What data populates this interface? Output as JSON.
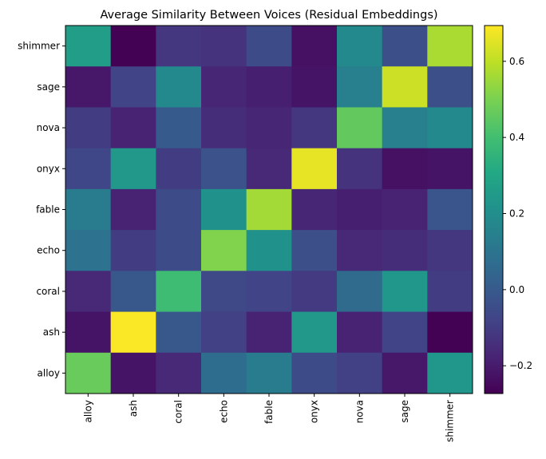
{
  "chart_data": {
    "type": "heatmap",
    "title": "Average Similarity Between Voices (Residual Embeddings)",
    "colormap": "viridis",
    "x_categories": [
      "alloy",
      "ash",
      "coral",
      "echo",
      "fable",
      "onyx",
      "nova",
      "sage",
      "shimmer"
    ],
    "y_categories_top_to_bottom": [
      "shimmer",
      "sage",
      "nova",
      "onyx",
      "fable",
      "echo",
      "coral",
      "ash",
      "alloy"
    ],
    "values_top_to_bottom": [
      [
        0.26,
        -0.27,
        -0.12,
        -0.13,
        -0.05,
        -0.23,
        0.18,
        -0.04,
        0.57
      ],
      [
        -0.21,
        -0.08,
        0.18,
        -0.17,
        -0.19,
        -0.22,
        0.14,
        0.62,
        -0.04
      ],
      [
        -0.1,
        -0.18,
        0.0,
        -0.15,
        -0.17,
        -0.12,
        0.46,
        0.14,
        0.18
      ],
      [
        -0.07,
        0.24,
        -0.1,
        -0.03,
        -0.16,
        0.66,
        -0.13,
        -0.23,
        -0.22
      ],
      [
        0.13,
        -0.18,
        -0.05,
        0.21,
        0.56,
        -0.17,
        -0.19,
        -0.18,
        -0.02
      ],
      [
        0.09,
        -0.1,
        -0.05,
        0.51,
        0.21,
        -0.04,
        -0.16,
        -0.15,
        -0.12
      ],
      [
        -0.16,
        -0.01,
        0.39,
        -0.06,
        -0.08,
        -0.11,
        0.06,
        0.23,
        -0.1
      ],
      [
        -0.22,
        0.69,
        -0.01,
        -0.09,
        -0.18,
        0.24,
        -0.18,
        -0.08,
        -0.27
      ],
      [
        0.47,
        -0.22,
        -0.16,
        0.07,
        0.13,
        -0.05,
        -0.09,
        -0.21,
        0.23
      ]
    ],
    "colorbar": {
      "range": [
        -0.273,
        0.694
      ],
      "ticks": [
        -0.2,
        0.0,
        0.2,
        0.4,
        0.6
      ],
      "tick_labels": [
        "−0.2",
        "0.0",
        "0.2",
        "0.4",
        "0.6"
      ]
    }
  }
}
